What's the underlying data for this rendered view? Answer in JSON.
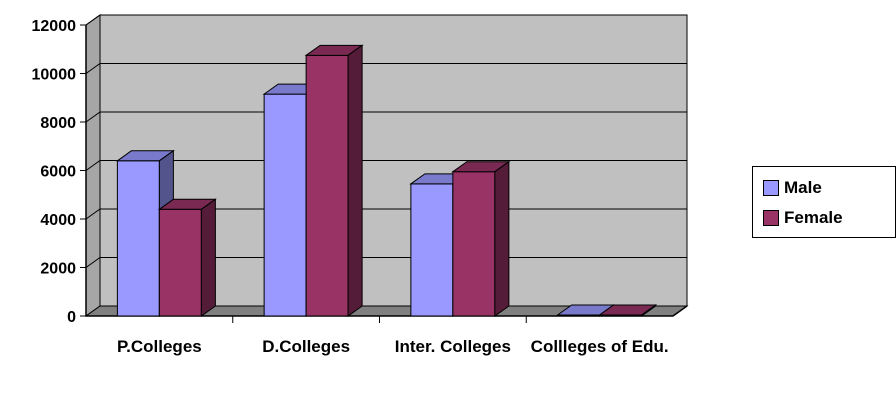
{
  "chart_data": {
    "type": "bar",
    "categories": [
      "P.Colleges",
      "D.Colleges",
      "Inter. Colleges",
      "Collleges of Edu."
    ],
    "series": [
      {
        "name": "Male",
        "values": [
          6400,
          9150,
          5450,
          40
        ],
        "color": "#9999ff"
      },
      {
        "name": "Female",
        "values": [
          4400,
          10750,
          5950,
          40
        ],
        "color": "#993366"
      }
    ],
    "ylim": [
      0,
      12000
    ],
    "yticks": [
      "0",
      "2000",
      "4000",
      "6000",
      "8000",
      "10000",
      "12000"
    ],
    "grid": true,
    "legend_position": "right",
    "style": "3d-clustered-column",
    "wall_color": "#c0c0c0",
    "floor_color": "#808080"
  }
}
